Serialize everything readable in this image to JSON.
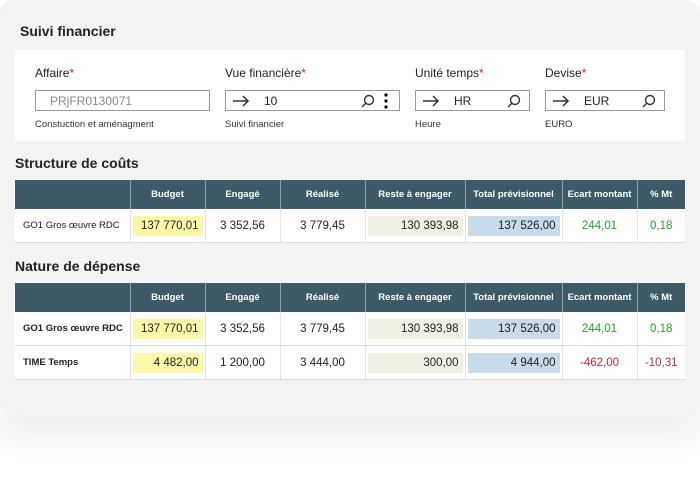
{
  "header": {
    "title": "Suivi financier"
  },
  "filters": [
    {
      "label": "Affaire",
      "required": "*",
      "value": "PRjFR0130071",
      "helper": "Constuction et aménagment"
    },
    {
      "label": "Vue financière",
      "required": "*",
      "value": "10",
      "helper": "Suivi financier"
    },
    {
      "label": "Unité temps",
      "required": "*",
      "value": "HR",
      "helper": "Heure"
    },
    {
      "label": "Devise",
      "required": "*",
      "value": "EUR",
      "helper": "EURO"
    }
  ],
  "tables": [
    {
      "title": "Structure de coûts",
      "columns": [
        "Budget",
        "Engagé",
        "Réalisé",
        "Reste à engager",
        "Total prévisionnel",
        "Ecart montant",
        "% Mt"
      ],
      "rows": [
        {
          "label": "GO1 Gros œuvre RDC",
          "cells": [
            "137 770,01",
            "3 352,56",
            "3 779,45",
            "130 393,98",
            "137 526,00",
            "244,01",
            "0,18"
          ]
        }
      ]
    },
    {
      "title": "Nature de dépense",
      "columns": [
        "Budget",
        "Engagé",
        "Réalisé",
        "Reste à engager",
        "Total prévisionnel",
        "Ecart montant",
        "% Mt"
      ],
      "rows": [
        {
          "label": "GO1 Gros œuvre RDC",
          "cells": [
            "137 770,01",
            "3 352,56",
            "3 779,45",
            "130 393,98",
            "137 526,00",
            "244,01",
            "0,18"
          ]
        },
        {
          "label": "TIME Temps",
          "cells": [
            "4 482,00",
            "1 200,00",
            "3 444,00",
            "300,00",
            "4 944,00",
            "-462,00",
            "-10,31"
          ]
        }
      ]
    }
  ]
}
